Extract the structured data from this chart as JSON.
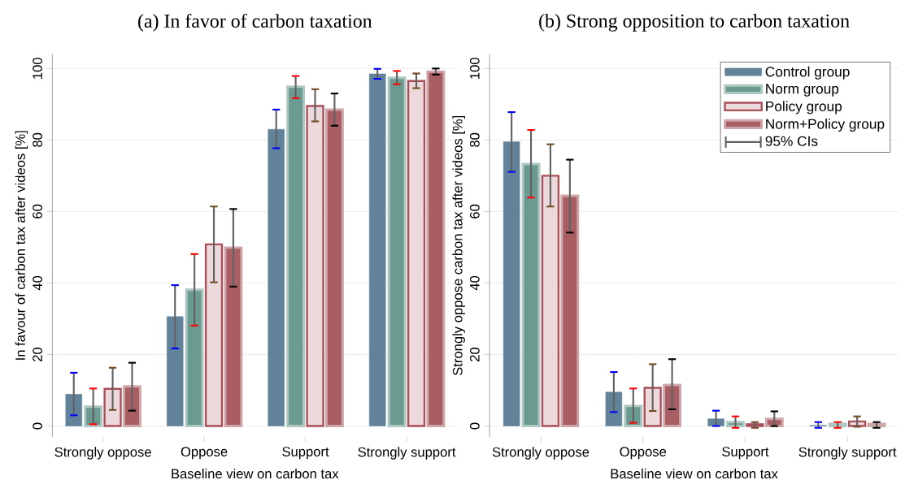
{
  "chart_data": [
    {
      "type": "bar",
      "title": "(a) In favor of carbon taxation",
      "xlabel": "Baseline view on carbon tax",
      "ylabel": "In favour of carbon tax after videos [%]",
      "categories": [
        "Strongly oppose",
        "Oppose",
        "Support",
        "Strongly support"
      ],
      "series": [
        {
          "color": "#62829a",
          "values": [
            8.9,
            30.6,
            83.0,
            98.5
          ],
          "errors": [
            [
              3.0,
              14.9
            ],
            [
              21.7,
              39.4
            ],
            [
              77.7,
              88.5
            ],
            [
              97.1,
              99.9
            ]
          ]
        },
        {
          "color": "#6b9a90",
          "values": [
            5.4,
            38.1,
            94.9,
            97.4
          ],
          "errors": [
            [
              0.5,
              10.5
            ],
            [
              28.1,
              48.1
            ],
            [
              91.7,
              97.9
            ],
            [
              95.6,
              99.3
            ]
          ]
        },
        {
          "color": "#a8505a",
          "values": [
            10.4,
            50.8,
            89.5,
            96.5
          ],
          "errors": [
            [
              4.5,
              16.3
            ],
            [
              40.2,
              61.4
            ],
            [
              85.2,
              94.2
            ],
            [
              94.5,
              98.6
            ]
          ]
        },
        {
          "color": "#a85e63",
          "values": [
            11.1,
            49.9,
            88.5,
            99.1
          ],
          "errors": [
            [
              4.3,
              17.7
            ],
            [
              39.0,
              60.7
            ],
            [
              84.0,
              93.0
            ],
            [
              98.3,
              100
            ]
          ]
        }
      ],
      "ylim": [
        -3,
        104
      ],
      "yticks": [
        0,
        20,
        40,
        60,
        80,
        100
      ],
      "grid": "y",
      "legend": false
    },
    {
      "type": "bar",
      "title": "(b) Strong opposition to carbon taxation",
      "xlabel": "Baseline view on carbon tax",
      "ylabel": "Strongly oppose carbon tax after videos [%]",
      "categories": [
        "Strongly oppose",
        "Oppose",
        "Support",
        "Strongly support"
      ],
      "series": [
        {
          "name": "Control group",
          "color": "#62829a",
          "values": [
            79.5,
            9.5,
            2.0,
            0.2
          ],
          "errors": [
            [
              71.1,
              87.8
            ],
            [
              3.9,
              15.1
            ],
            [
              0,
              4.3
            ],
            [
              -0.5,
              1.1
            ]
          ]
        },
        {
          "name": "Norm group",
          "color": "#6b9a90",
          "values": [
            73.3,
            5.6,
            1.1,
            0.6
          ],
          "errors": [
            [
              63.9,
              82.8
            ],
            [
              0.9,
              10.5
            ],
            [
              -0.5,
              2.7
            ],
            [
              -0.5,
              1.1
            ]
          ]
        },
        {
          "name": "Policy group",
          "color": "#a8505a",
          "values": [
            70.0,
            10.7,
            0.5,
            1.3
          ],
          "errors": [
            [
              61.4,
              78.8
            ],
            [
              4.2,
              17.3
            ],
            [
              -0.5,
              1.1
            ],
            [
              -0.2,
              2.7
            ]
          ]
        },
        {
          "name": "Norm+Policy group",
          "color": "#a85e63",
          "values": [
            64.4,
            11.5,
            2.0,
            0.6
          ],
          "errors": [
            [
              54.1,
              74.5
            ],
            [
              4.7,
              18.7
            ],
            [
              0,
              4.1
            ],
            [
              -0.5,
              1.1
            ]
          ]
        }
      ],
      "annotations": [
        "95% CIs"
      ],
      "ylim": [
        -3,
        104
      ],
      "yticks": [
        0,
        20,
        40,
        60,
        80,
        100
      ],
      "grid": "y",
      "legend": "top right"
    }
  ]
}
